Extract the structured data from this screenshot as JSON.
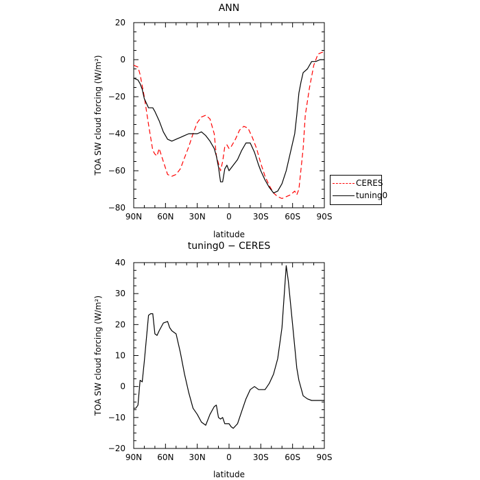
{
  "chart_data": [
    {
      "type": "line",
      "title": "ANN",
      "xlabel": "latitude",
      "ylabel": "TOA SW cloud forcing (W/m²)",
      "xlim": [
        90,
        -90
      ],
      "ylim": [
        -80,
        20
      ],
      "xticks": [
        90,
        60,
        30,
        0,
        -30,
        -60,
        -90
      ],
      "xtick_labels": [
        "90N",
        "60N",
        "30N",
        "0",
        "30S",
        "60S",
        "90S"
      ],
      "yticks": [
        20,
        0,
        -20,
        -40,
        -60,
        -80
      ],
      "ytick_labels": [
        "20",
        "0",
        "−20",
        "−40",
        "−60",
        "−80"
      ],
      "legend": "right",
      "series": [
        {
          "name": "CERES",
          "color": "#ff0000",
          "dash": "dashed",
          "x": [
            90,
            86,
            84,
            80,
            76,
            72,
            70,
            68,
            66,
            62,
            58,
            54,
            50,
            46,
            42,
            38,
            34,
            30,
            26,
            22,
            18,
            14,
            12,
            8,
            6,
            4,
            2,
            0,
            -2,
            -6,
            -10,
            -14,
            -18,
            -22,
            -26,
            -30,
            -34,
            -38,
            -42,
            -46,
            -50,
            -54,
            -58,
            -62,
            -64,
            -66,
            -70,
            -72,
            -76,
            -80,
            -84,
            -88,
            -90
          ],
          "y": [
            -3,
            -4,
            -8,
            -20,
            -35,
            -49,
            -51,
            -52,
            -48,
            -55,
            -62,
            -63,
            -62,
            -59,
            -53,
            -47,
            -40,
            -34,
            -31,
            -30,
            -32,
            -40,
            -52,
            -60,
            -55,
            -47,
            -46,
            -48,
            -47,
            -43,
            -38,
            -36,
            -37,
            -42,
            -48,
            -56,
            -63,
            -68,
            -72,
            -74,
            -75,
            -74,
            -73,
            -71,
            -73,
            -70,
            -48,
            -30,
            -15,
            -3,
            3,
            4,
            4
          ]
        },
        {
          "name": "tuning0",
          "color": "#000000",
          "dash": "solid",
          "x": [
            90,
            86,
            84,
            82,
            80,
            76,
            72,
            70,
            66,
            62,
            58,
            54,
            50,
            46,
            42,
            38,
            34,
            30,
            26,
            22,
            18,
            14,
            12,
            10,
            8,
            6,
            4,
            2,
            0,
            -4,
            -8,
            -12,
            -16,
            -20,
            -24,
            -28,
            -30,
            -34,
            -38,
            -42,
            -46,
            -50,
            -54,
            -58,
            -62,
            -64,
            -66,
            -68,
            -70,
            -74,
            -78,
            -82,
            -86,
            -90
          ],
          "y": [
            -10,
            -11,
            -13,
            -16,
            -21,
            -26,
            -26,
            -28,
            -33,
            -39,
            -43,
            -44,
            -43,
            -42,
            -41,
            -40,
            -40,
            -40,
            -39,
            -41,
            -44,
            -48,
            -52,
            -58,
            -66,
            -66,
            -59,
            -57,
            -60,
            -57,
            -54,
            -49,
            -45,
            -45,
            -50,
            -57,
            -60,
            -65,
            -69,
            -72,
            -71,
            -67,
            -60,
            -50,
            -40,
            -30,
            -18,
            -12,
            -7,
            -5,
            -1,
            -1,
            0,
            0
          ]
        }
      ]
    },
    {
      "type": "line",
      "title": "tuning0 − CERES",
      "xlabel": "latitude",
      "ylabel": "TOA SW cloud forcing (W/m²)",
      "xlim": [
        90,
        -90
      ],
      "ylim": [
        -20,
        40
      ],
      "xticks": [
        90,
        60,
        30,
        0,
        -30,
        -60,
        -90
      ],
      "xtick_labels": [
        "90N",
        "60N",
        "30N",
        "0",
        "30S",
        "60S",
        "90S"
      ],
      "yticks": [
        40,
        30,
        20,
        10,
        0,
        -10,
        -20
      ],
      "ytick_labels": [
        "40",
        "30",
        "20",
        "10",
        "0",
        "−10",
        "−20"
      ],
      "series": [
        {
          "color": "#000000",
          "dash": "solid",
          "x": [
            90,
            88,
            86,
            84,
            82,
            80,
            76,
            74,
            72,
            70,
            68,
            66,
            62,
            58,
            56,
            54,
            50,
            46,
            42,
            38,
            34,
            30,
            26,
            22,
            18,
            14,
            12,
            10,
            8,
            6,
            4,
            2,
            0,
            -2,
            -4,
            -8,
            -12,
            -16,
            -20,
            -24,
            -28,
            -32,
            -34,
            -36,
            -38,
            -42,
            -46,
            -50,
            -54,
            -56,
            -60,
            -64,
            -66,
            -70,
            -74,
            -78,
            -82,
            -86,
            -90
          ],
          "y": [
            -7,
            -7,
            -6,
            2,
            1.5,
            8,
            23,
            23.5,
            23.5,
            17,
            16.5,
            18,
            20.5,
            21,
            19,
            18,
            17,
            11,
            4,
            -2,
            -7,
            -9,
            -11.5,
            -12.5,
            -9,
            -6.5,
            -6,
            -10,
            -10.5,
            -10,
            -12,
            -12,
            -12,
            -13,
            -13.5,
            -12,
            -8,
            -4,
            -1,
            0,
            -1,
            -1,
            -1,
            0,
            1,
            4,
            9,
            19,
            39,
            34,
            20,
            6,
            2,
            -3,
            -4,
            -4.5,
            -4.5,
            -4.5,
            -4.5
          ]
        }
      ]
    }
  ]
}
